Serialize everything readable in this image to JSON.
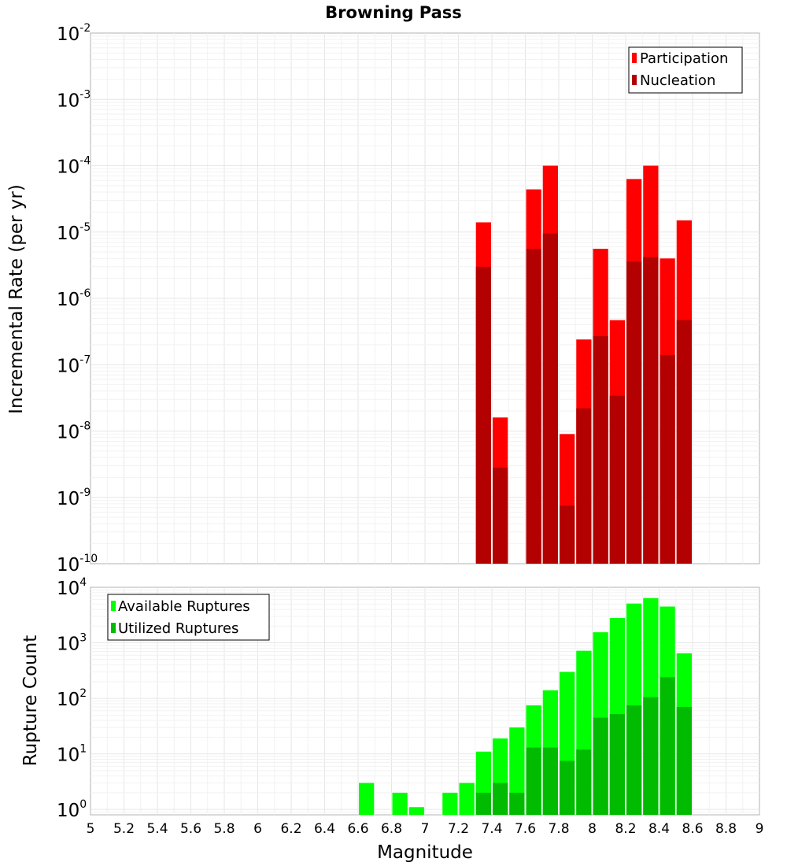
{
  "chart_data": [
    {
      "type": "bar",
      "title": "Browning Pass",
      "xlabel": "",
      "ylabel": "Incremental Rate (per yr)",
      "y_scale": "log",
      "ylim": [
        1e-10,
        0.01
      ],
      "xlim": [
        5,
        9
      ],
      "legend_position": "top-right",
      "y_ticks": [
        {
          "base": "10",
          "exp": "-2"
        },
        {
          "base": "10",
          "exp": "-3"
        },
        {
          "base": "10",
          "exp": "-4"
        },
        {
          "base": "10",
          "exp": "-5"
        },
        {
          "base": "10",
          "exp": "-6"
        },
        {
          "base": "10",
          "exp": "-7"
        },
        {
          "base": "10",
          "exp": "-8"
        },
        {
          "base": "10",
          "exp": "-9"
        },
        {
          "base": "10",
          "exp": "-10"
        }
      ],
      "series": [
        {
          "name": "Participation",
          "color": "#ff0000",
          "x": [
            7.3,
            7.4,
            7.6,
            7.7,
            7.8,
            7.9,
            8.0,
            8.1,
            8.2,
            8.3,
            8.4,
            8.5
          ],
          "values": [
            1.4e-05,
            1.6e-08,
            4.4e-05,
            0.0001,
            9e-09,
            2.4e-07,
            5.6e-06,
            4.7e-07,
            6.3e-05,
            0.0001,
            4e-06,
            1.5e-05
          ]
        },
        {
          "name": "Nucleation",
          "color": "#b30000",
          "x": [
            7.3,
            7.4,
            7.6,
            7.7,
            7.8,
            7.9,
            8.0,
            8.1,
            8.2,
            8.3,
            8.4,
            8.5
          ],
          "values": [
            3e-06,
            2.8e-09,
            5.6e-06,
            9.5e-06,
            7.5e-10,
            2.2e-08,
            2.7e-07,
            3.4e-08,
            3.6e-06,
            4.2e-06,
            1.4e-07,
            4.7e-07
          ]
        }
      ]
    },
    {
      "type": "bar",
      "title": "",
      "xlabel": "Magnitude",
      "ylabel": "Rupture Count",
      "y_scale": "log",
      "ylim": [
        0.8,
        10000
      ],
      "xlim": [
        5,
        9
      ],
      "legend_position": "top-left",
      "x_ticks": [
        "5",
        "5.2",
        "5.4",
        "5.6",
        "5.8",
        "6",
        "6.2",
        "6.4",
        "6.6",
        "6.8",
        "7",
        "7.2",
        "7.4",
        "7.6",
        "7.8",
        "8",
        "8.2",
        "8.4",
        "8.6",
        "8.8",
        "9"
      ],
      "y_ticks": [
        {
          "base": "10",
          "exp": "4"
        },
        {
          "base": "10",
          "exp": "3"
        },
        {
          "base": "10",
          "exp": "2"
        },
        {
          "base": "10",
          "exp": "1"
        },
        {
          "base": "10",
          "exp": "0"
        }
      ],
      "series": [
        {
          "name": "Available Ruptures",
          "color": "#00ff00",
          "x": [
            6.6,
            6.8,
            6.9,
            7.1,
            7.2,
            7.3,
            7.4,
            7.5,
            7.6,
            7.7,
            7.8,
            7.9,
            8.0,
            8.1,
            8.2,
            8.3,
            8.4,
            8.5
          ],
          "values": [
            3,
            2,
            1.1,
            2,
            3,
            11,
            19,
            30,
            75,
            140,
            300,
            720,
            1550,
            2800,
            5100,
            6400,
            4500,
            650
          ]
        },
        {
          "name": "Utilized Ruptures",
          "color": "#00bb00",
          "x": [
            7.3,
            7.4,
            7.5,
            7.6,
            7.7,
            7.8,
            7.9,
            8.0,
            8.1,
            8.2,
            8.3,
            8.4,
            8.5
          ],
          "values": [
            2,
            3,
            2,
            13,
            13,
            7.5,
            12,
            45,
            52,
            75,
            105,
            240,
            70
          ]
        }
      ]
    }
  ]
}
